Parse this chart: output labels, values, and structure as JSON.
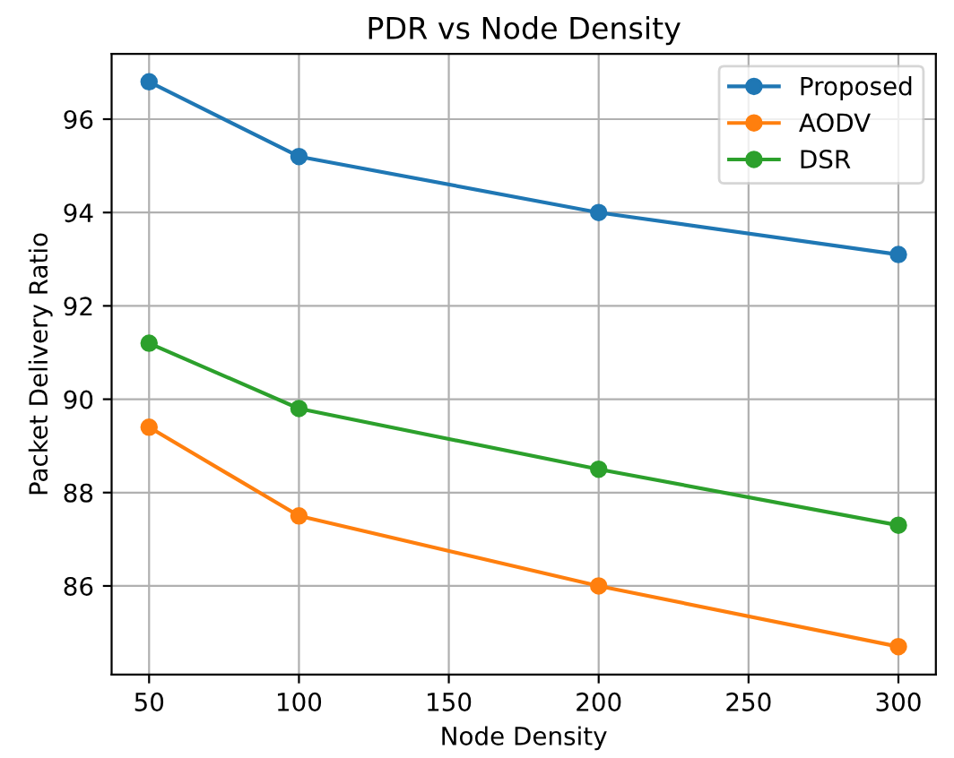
{
  "chart_data": {
    "type": "line",
    "title": "PDR vs Node Density",
    "xlabel": "Node Density",
    "ylabel": "Packet Delivery Ratio",
    "x": [
      50,
      100,
      200,
      300
    ],
    "series": [
      {
        "name": "Proposed",
        "color": "#1f77b4",
        "values": [
          96.8,
          95.2,
          94.0,
          93.1
        ]
      },
      {
        "name": "AODV",
        "color": "#ff7f0e",
        "values": [
          89.4,
          87.5,
          86.0,
          84.7
        ]
      },
      {
        "name": "DSR",
        "color": "#2ca02c",
        "values": [
          91.2,
          89.8,
          88.5,
          87.3
        ]
      }
    ],
    "xlim": [
      37.5,
      312.5
    ],
    "xticks": [
      50,
      100,
      150,
      200,
      250,
      300
    ],
    "ylim": [
      84.1,
      97.4
    ],
    "yticks": [
      86,
      88,
      90,
      92,
      94,
      96
    ],
    "grid": true,
    "legend": "top right",
    "marker": "circle",
    "line_style": "solid"
  }
}
